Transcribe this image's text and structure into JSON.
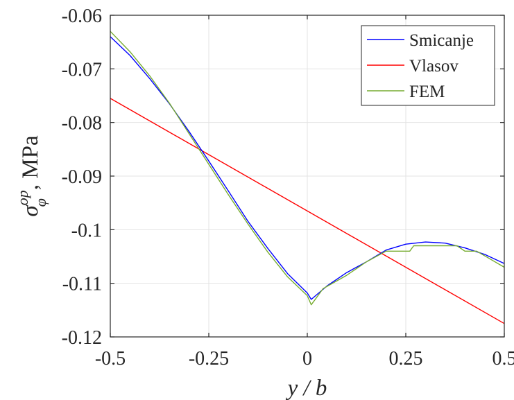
{
  "chart_data": {
    "type": "line",
    "title": "",
    "xlabel": "y / b",
    "ylabel_main": "σ",
    "ylabel_sup": "op",
    "ylabel_sub": "φ",
    "ylabel_rest": ", MPa",
    "xlim": [
      -0.5,
      0.5
    ],
    "ylim": [
      -0.12,
      -0.06
    ],
    "xticks": [
      -0.5,
      -0.25,
      0,
      0.25,
      0.5
    ],
    "xtick_labels": [
      "-0.5",
      "-0.25",
      "0",
      "0.25",
      "0.5"
    ],
    "yticks": [
      -0.06,
      -0.07,
      -0.08,
      -0.09,
      -0.1,
      -0.11,
      -0.12
    ],
    "ytick_labels": [
      "-0.06",
      "-0.07",
      "-0.08",
      "-0.09",
      "-0.1",
      "-0.11",
      "-0.12"
    ],
    "grid": true,
    "legend_position": "top-right",
    "series": [
      {
        "name": "Smicanje",
        "color": "#0000ff",
        "x": [
          -0.5,
          -0.45,
          -0.4,
          -0.35,
          -0.3,
          -0.25,
          -0.2,
          -0.15,
          -0.1,
          -0.05,
          0,
          0.01,
          0.05,
          0.1,
          0.15,
          0.2,
          0.25,
          0.3,
          0.35,
          0.4,
          0.45,
          0.5
        ],
        "y": [
          -0.064,
          -0.0675,
          -0.0718,
          -0.0765,
          -0.0817,
          -0.0872,
          -0.0928,
          -0.0985,
          -0.1035,
          -0.1082,
          -0.1118,
          -0.113,
          -0.1105,
          -0.108,
          -0.106,
          -0.1038,
          -0.1027,
          -0.1023,
          -0.1025,
          -0.1034,
          -0.1046,
          -0.1063
        ]
      },
      {
        "name": "Vlasov",
        "color": "#ff0000",
        "x": [
          -0.5,
          0.5
        ],
        "y": [
          -0.0755,
          -0.1175
        ]
      },
      {
        "name": "FEM",
        "color": "#77ac30",
        "x": [
          -0.5,
          -0.45,
          -0.4,
          -0.35,
          -0.3,
          -0.25,
          -0.2,
          -0.15,
          -0.1,
          -0.05,
          0,
          0.01,
          0.02,
          0.04,
          0.1,
          0.15,
          0.2,
          0.26,
          0.27,
          0.3,
          0.38,
          0.4,
          0.43,
          0.5
        ],
        "y": [
          -0.063,
          -0.0668,
          -0.0713,
          -0.0764,
          -0.0821,
          -0.0878,
          -0.0935,
          -0.099,
          -0.1042,
          -0.1088,
          -0.1123,
          -0.114,
          -0.113,
          -0.111,
          -0.1085,
          -0.106,
          -0.104,
          -0.104,
          -0.103,
          -0.103,
          -0.103,
          -0.104,
          -0.104,
          -0.107
        ]
      }
    ]
  }
}
